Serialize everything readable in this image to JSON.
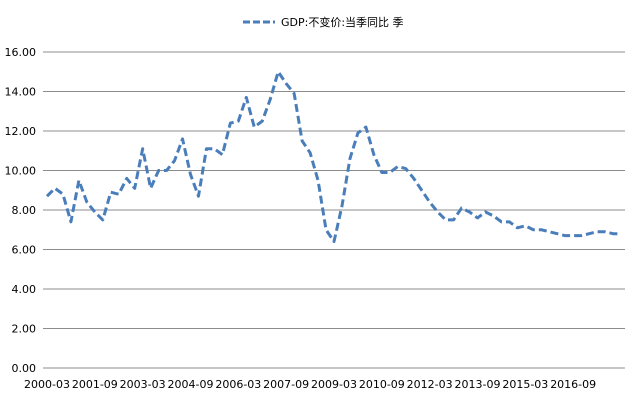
{
  "chart_data": {
    "type": "line",
    "series": [
      {
        "name": "GDP:不变价:当季同比 季",
        "color": "#4a7ebb",
        "style": "dashed",
        "values": [
          8.7,
          9.1,
          8.8,
          7.4,
          9.5,
          8.4,
          7.9,
          7.5,
          8.9,
          8.8,
          9.6,
          9.1,
          11.1,
          9.1,
          10.0,
          10.0,
          10.5,
          11.6,
          9.8,
          8.7,
          11.1,
          11.1,
          10.8,
          12.4,
          12.5,
          13.7,
          12.2,
          12.5,
          13.6,
          15.0,
          14.4,
          13.9,
          11.5,
          10.9,
          9.5,
          7.0,
          6.4,
          8.2,
          10.6,
          11.9,
          12.2,
          10.8,
          9.9,
          9.9,
          10.2,
          10.1,
          9.6,
          9.0,
          8.4,
          7.9,
          7.5,
          7.5,
          8.1,
          7.9,
          7.6,
          7.9,
          7.7,
          7.4,
          7.4,
          7.1,
          7.2,
          7.0,
          7.0,
          6.9,
          6.8,
          6.7,
          6.7,
          6.7,
          6.8,
          6.9,
          6.9,
          6.8,
          6.8
        ]
      }
    ],
    "x_tick_labels": [
      "2000-03",
      "2001-09",
      "2003-03",
      "2004-09",
      "2006-03",
      "2007-09",
      "2009-03",
      "2010-09",
      "2012-03",
      "2013-09",
      "2015-03",
      "2016-09"
    ],
    "y_tick_labels": [
      "0.00",
      "2.00",
      "4.00",
      "6.00",
      "8.00",
      "10.00",
      "12.00",
      "14.00",
      "16.00"
    ],
    "ylim": [
      0,
      16
    ],
    "grid": "horizontal",
    "legend_position": "top-center"
  }
}
